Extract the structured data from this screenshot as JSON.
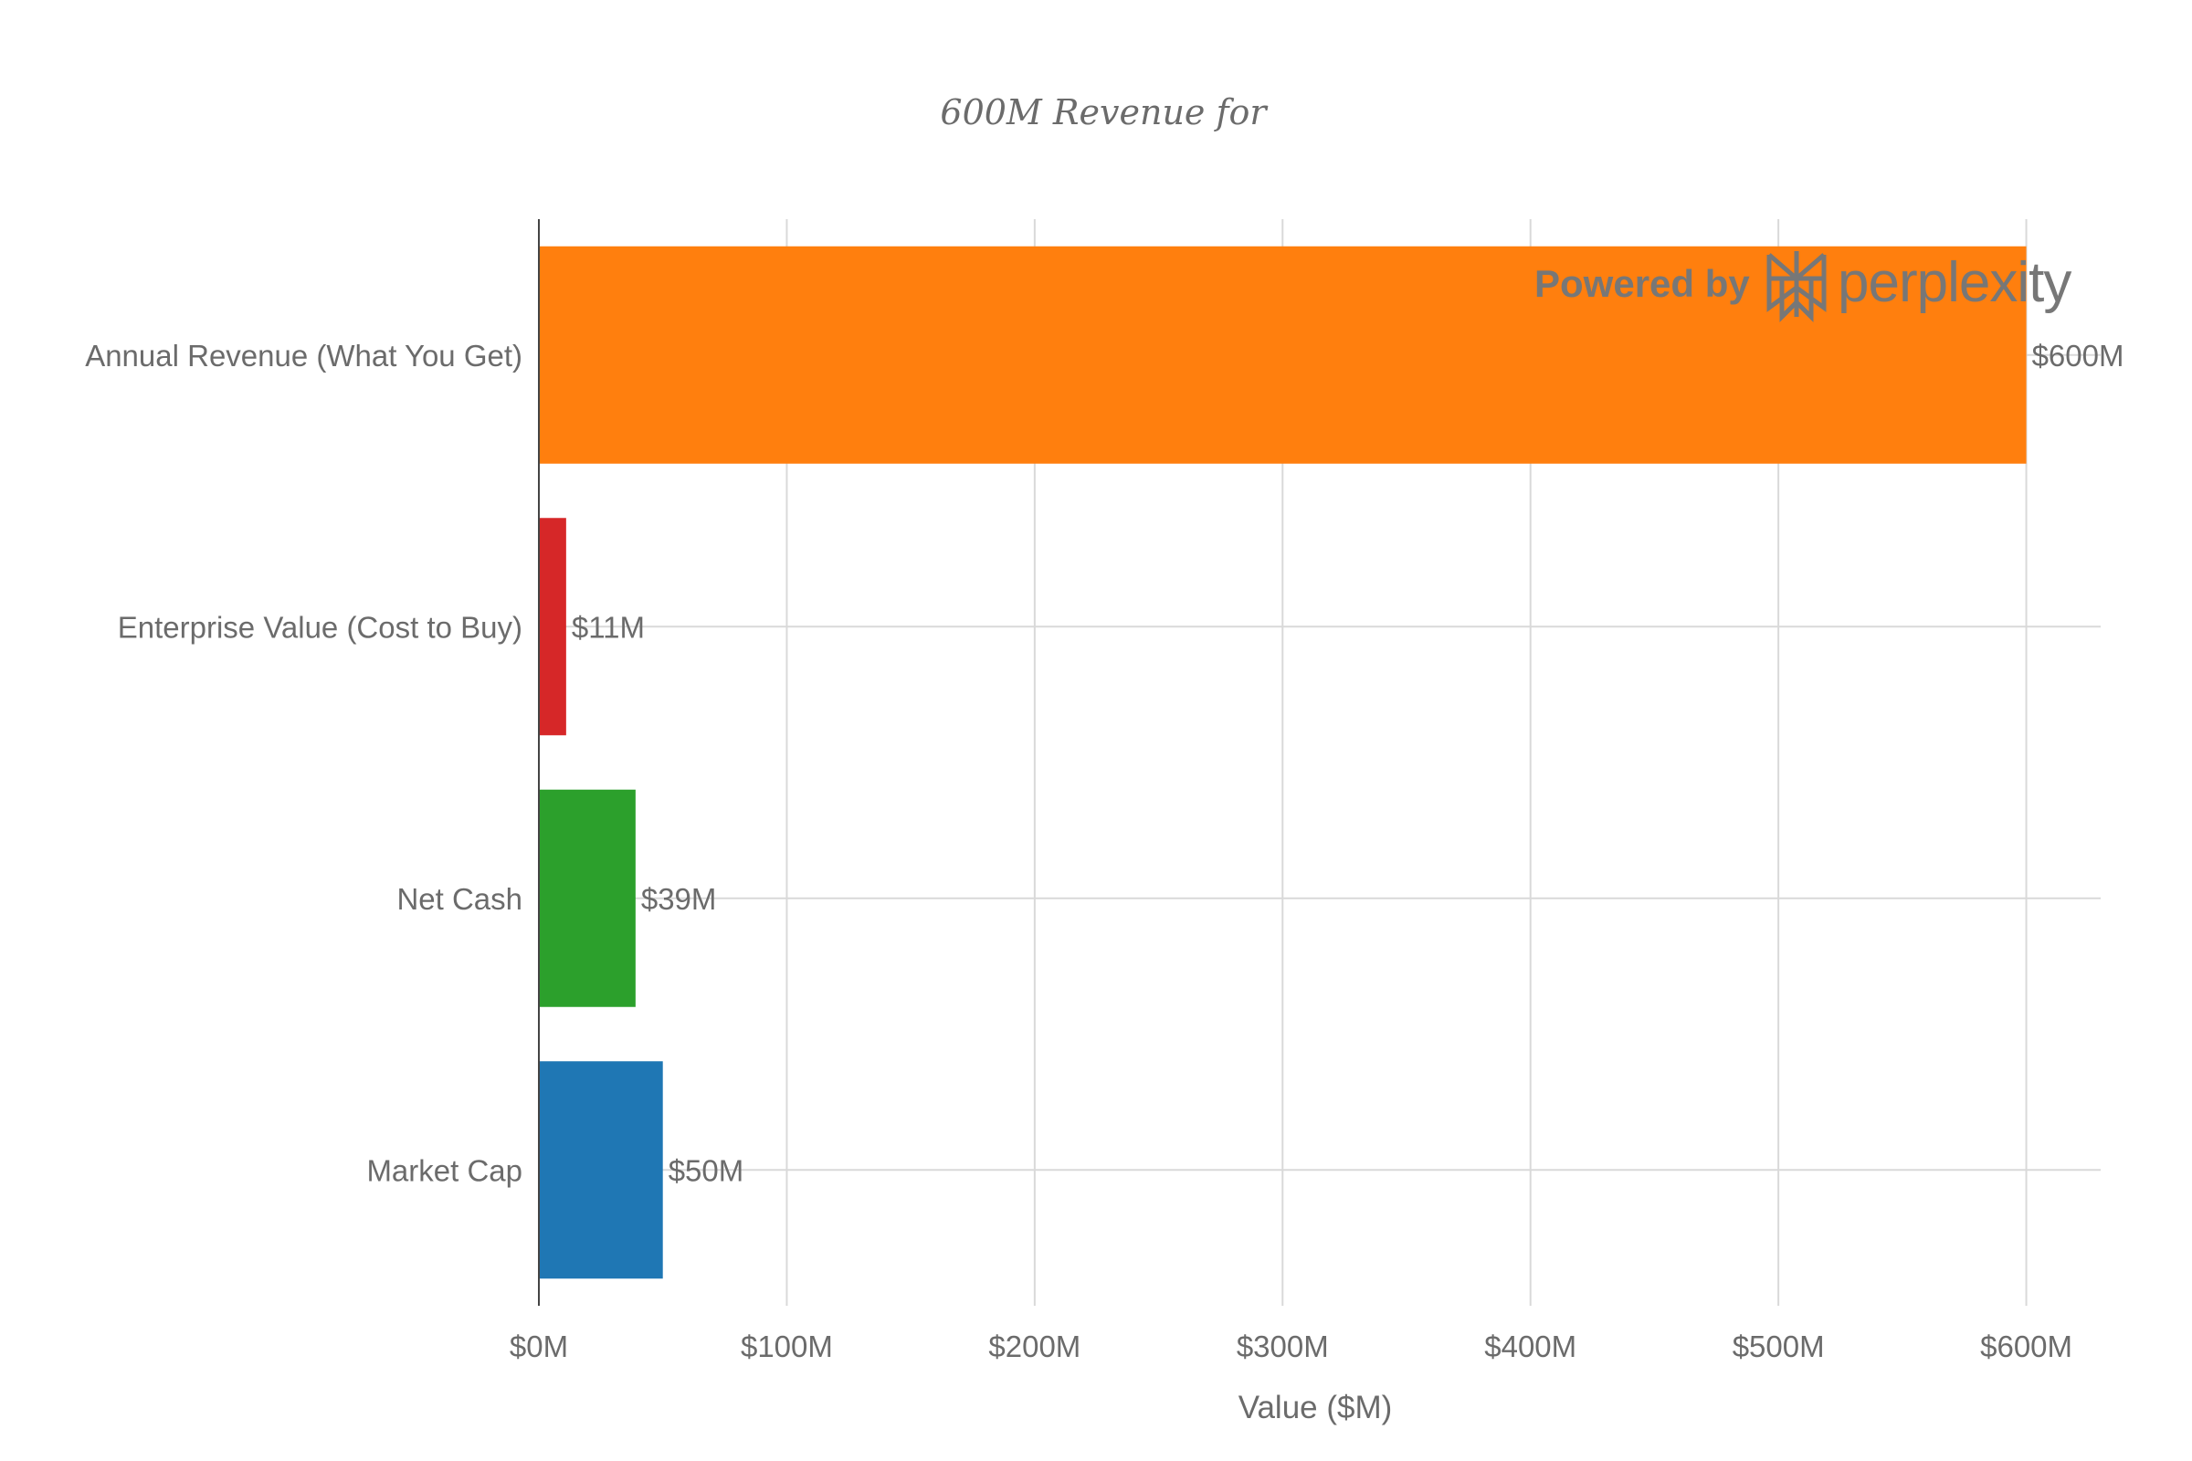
{
  "chart_data": {
    "type": "bar",
    "orientation": "horizontal",
    "title": "600M Revenue for",
    "xlabel": "Value ($M)",
    "ylabel": "",
    "xlim": [
      0,
      630
    ],
    "x_ticks": [
      0,
      100,
      200,
      300,
      400,
      500,
      600
    ],
    "x_tick_labels": [
      "$0M",
      "$100M",
      "$200M",
      "$300M",
      "$400M",
      "$500M",
      "$600M"
    ],
    "grid": true,
    "legend": "none",
    "bars": [
      {
        "category": "Annual Revenue (What You Get)",
        "value": 600,
        "label": "$600M",
        "color": "#ff7f0e"
      },
      {
        "category": "Enterprise Value (Cost to Buy)",
        "value": 11,
        "label": "$11M",
        "color": "#d62728"
      },
      {
        "category": "Net Cash",
        "value": 39,
        "label": "$39M",
        "color": "#2ca02c"
      },
      {
        "category": "Market Cap",
        "value": 50,
        "label": "$50M",
        "color": "#1f77b4"
      }
    ]
  },
  "watermark": {
    "text_left": "Powered by",
    "text_right": "perplexity",
    "icon": "perplexity-logo-icon"
  },
  "colors": {
    "text": "#6b6b6b",
    "grid": "#d9d9d9",
    "axis": "#444444"
  }
}
